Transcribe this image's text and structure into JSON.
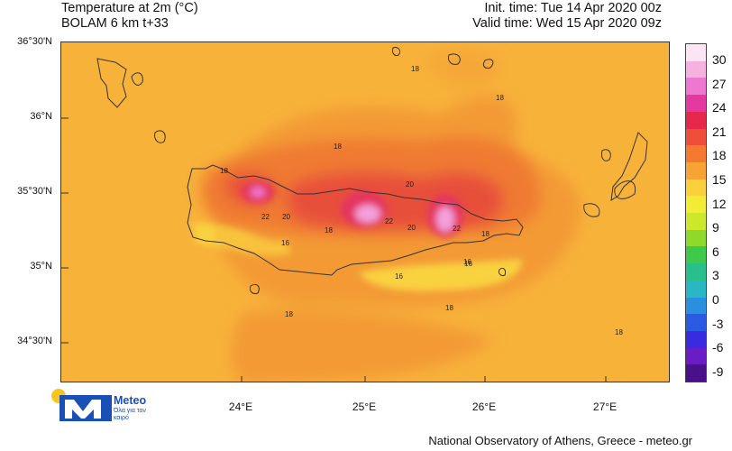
{
  "header": {
    "title_line1": "Temperature at 2m (°C)",
    "title_line2": "BOLAM 6 km t+33",
    "init_time": "Init. time: Tue 14 Apr 2020 00z",
    "valid_time": "Valid time: Wed 15 Apr 2020 09z"
  },
  "axes": {
    "lat_labels": [
      "36°30'N",
      "36°N",
      "35°30'N",
      "35°N",
      "34°30'N"
    ],
    "lon_labels": [
      "24°E",
      "25°E",
      "26°E",
      "27°E"
    ]
  },
  "colorbar": {
    "labels": [
      "30",
      "27",
      "24",
      "21",
      "18",
      "15",
      "12",
      "9",
      "6",
      "3",
      "0",
      "-3",
      "-6",
      "-9"
    ],
    "colors": [
      "#fbe4f3",
      "#f6b2df",
      "#ee78cf",
      "#e43aa0",
      "#e8274c",
      "#ef4f3a",
      "#f57a30",
      "#f8a434",
      "#fbd13b",
      "#f3ec36",
      "#cde82a",
      "#8fd92b",
      "#3ec94a",
      "#29bf8a",
      "#2ab6c4",
      "#2b8fe0",
      "#2b5be3",
      "#3a2be0",
      "#6a1cc6",
      "#4a0f8a"
    ]
  },
  "contour_labels": [
    "18",
    "18",
    "18",
    "18",
    "18",
    "20",
    "22",
    "20",
    "18",
    "22",
    "20",
    "22",
    "16",
    "16",
    "16",
    "16",
    "18",
    "18",
    "18"
  ],
  "logo": {
    "brand": "Meteo",
    "tagline": "Όλα για τον καιρό"
  },
  "footer": {
    "credit": "National Observatory of Athens, Greece - meteo.gr"
  }
}
